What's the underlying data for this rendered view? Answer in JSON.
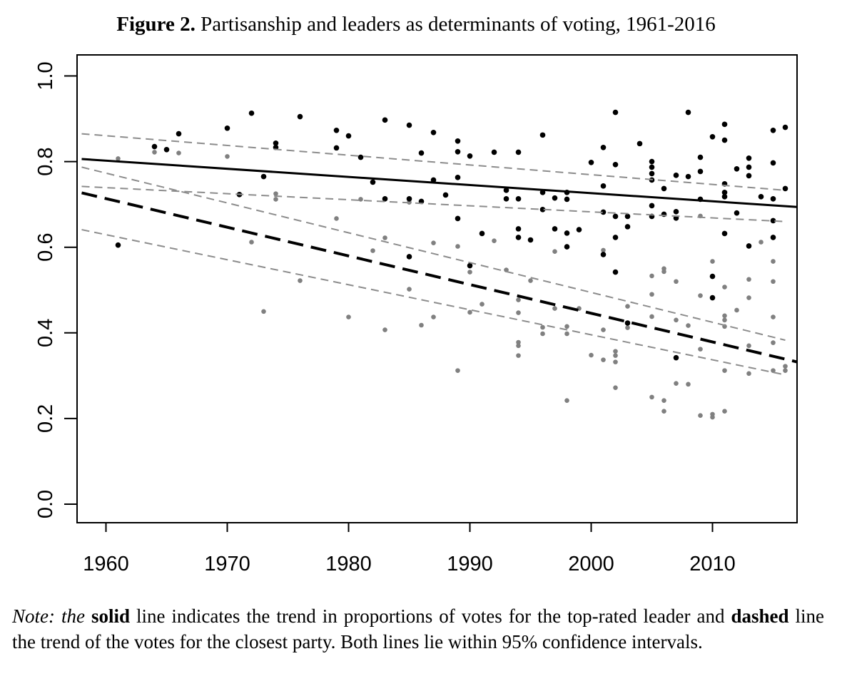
{
  "figure": {
    "label": "Figure 2.",
    "caption": " Partisanship and leaders as determinants of voting, 1961-2016"
  },
  "note": {
    "lead": "Note: the",
    "solid_word": "solid",
    "part1": " line indicates the trend in proportions of votes for the top-rated leader and ",
    "dashed_word": "dashed",
    "part2": " line the trend of the votes for the closest party. Both lines lie within 95% confidence intervals."
  },
  "chart_data": {
    "type": "scatter",
    "title": "Partisanship and leaders as determinants of voting, 1961-2016",
    "xlabel": "",
    "ylabel": "",
    "xlim": [
      1958,
      2017
    ],
    "ylim": [
      0.0,
      1.0
    ],
    "xticks": [
      1960,
      1970,
      1980,
      1990,
      2000,
      2010
    ],
    "yticks": [
      0.0,
      0.2,
      0.4,
      0.6,
      0.8,
      1.0
    ],
    "ytick_labels": [
      "0.0",
      "0.2",
      "0.4",
      "0.6",
      "0.8",
      "1.0"
    ],
    "grid": false,
    "colors": {
      "leader": "#000000",
      "party": "#808080",
      "ci": "#8c8c8c"
    },
    "series": [
      {
        "key": "leader",
        "color": "#000000",
        "points": [
          [
            1961,
            0.605
          ],
          [
            1964,
            0.835
          ],
          [
            1965,
            0.828
          ],
          [
            1966,
            0.865
          ],
          [
            1970,
            0.878
          ],
          [
            1971,
            0.723
          ],
          [
            1972,
            0.913
          ],
          [
            1973,
            0.765
          ],
          [
            1974,
            0.843
          ],
          [
            1974,
            0.833
          ],
          [
            1976,
            0.905
          ],
          [
            1979,
            0.873
          ],
          [
            1979,
            0.832
          ],
          [
            1980,
            0.86
          ],
          [
            1981,
            0.81
          ],
          [
            1982,
            0.752
          ],
          [
            1983,
            0.897
          ],
          [
            1983,
            0.713
          ],
          [
            1985,
            0.885
          ],
          [
            1985,
            0.578
          ],
          [
            1985,
            0.713
          ],
          [
            1986,
            0.82
          ],
          [
            1986,
            0.707
          ],
          [
            1987,
            0.868
          ],
          [
            1987,
            0.757
          ],
          [
            1988,
            0.722
          ],
          [
            1989,
            0.848
          ],
          [
            1989,
            0.823
          ],
          [
            1989,
            0.763
          ],
          [
            1989,
            0.667
          ],
          [
            1990,
            0.813
          ],
          [
            1990,
            0.557
          ],
          [
            1991,
            0.632
          ],
          [
            1992,
            0.822
          ],
          [
            1993,
            0.733
          ],
          [
            1993,
            0.713
          ],
          [
            1994,
            0.822
          ],
          [
            1994,
            0.713
          ],
          [
            1994,
            0.643
          ],
          [
            1994,
            0.623
          ],
          [
            1995,
            0.617
          ],
          [
            1996,
            0.862
          ],
          [
            1996,
            0.728
          ],
          [
            1996,
            0.688
          ],
          [
            1997,
            0.715
          ],
          [
            1997,
            0.643
          ],
          [
            1998,
            0.728
          ],
          [
            1998,
            0.712
          ],
          [
            1998,
            0.633
          ],
          [
            1998,
            0.601
          ],
          [
            1999,
            0.641
          ],
          [
            2000,
            0.798
          ],
          [
            2001,
            0.833
          ],
          [
            2001,
            0.743
          ],
          [
            2001,
            0.682
          ],
          [
            2001,
            0.583
          ],
          [
            2002,
            0.915
          ],
          [
            2002,
            0.793
          ],
          [
            2002,
            0.672
          ],
          [
            2002,
            0.623
          ],
          [
            2002,
            0.542
          ],
          [
            2003,
            0.672
          ],
          [
            2003,
            0.648
          ],
          [
            2003,
            0.423
          ],
          [
            2004,
            0.842
          ],
          [
            2005,
            0.8
          ],
          [
            2005,
            0.787
          ],
          [
            2005,
            0.772
          ],
          [
            2005,
            0.757
          ],
          [
            2005,
            0.697
          ],
          [
            2005,
            0.672
          ],
          [
            2006,
            0.737
          ],
          [
            2006,
            0.677
          ],
          [
            2007,
            0.768
          ],
          [
            2007,
            0.683
          ],
          [
            2007,
            0.668
          ],
          [
            2007,
            0.342
          ],
          [
            2008,
            0.915
          ],
          [
            2008,
            0.765
          ],
          [
            2009,
            0.81
          ],
          [
            2009,
            0.777
          ],
          [
            2009,
            0.712
          ],
          [
            2010,
            0.858
          ],
          [
            2010,
            0.532
          ],
          [
            2010,
            0.482
          ],
          [
            2011,
            0.887
          ],
          [
            2011,
            0.85
          ],
          [
            2011,
            0.748
          ],
          [
            2011,
            0.728
          ],
          [
            2011,
            0.718
          ],
          [
            2011,
            0.632
          ],
          [
            2012,
            0.783
          ],
          [
            2012,
            0.68
          ],
          [
            2013,
            0.808
          ],
          [
            2013,
            0.787
          ],
          [
            2013,
            0.767
          ],
          [
            2013,
            0.603
          ],
          [
            2014,
            0.718
          ],
          [
            2015,
            0.873
          ],
          [
            2015,
            0.797
          ],
          [
            2015,
            0.713
          ],
          [
            2015,
            0.662
          ],
          [
            2015,
            0.623
          ],
          [
            2016,
            0.88
          ],
          [
            2016,
            0.737
          ]
        ]
      },
      {
        "key": "party",
        "color": "#808080",
        "points": [
          [
            1961,
            0.807
          ],
          [
            1964,
            0.822
          ],
          [
            1966,
            0.82
          ],
          [
            1970,
            0.812
          ],
          [
            1972,
            0.612
          ],
          [
            1973,
            0.45
          ],
          [
            1974,
            0.725
          ],
          [
            1974,
            0.712
          ],
          [
            1976,
            0.522
          ],
          [
            1979,
            0.667
          ],
          [
            1980,
            0.437
          ],
          [
            1981,
            0.712
          ],
          [
            1982,
            0.592
          ],
          [
            1983,
            0.622
          ],
          [
            1983,
            0.407
          ],
          [
            1985,
            0.705
          ],
          [
            1985,
            0.502
          ],
          [
            1986,
            0.418
          ],
          [
            1987,
            0.61
          ],
          [
            1987,
            0.437
          ],
          [
            1989,
            0.602
          ],
          [
            1989,
            0.312
          ],
          [
            1990,
            0.542
          ],
          [
            1990,
            0.448
          ],
          [
            1991,
            0.467
          ],
          [
            1992,
            0.615
          ],
          [
            1993,
            0.547
          ],
          [
            1994,
            0.477
          ],
          [
            1994,
            0.447
          ],
          [
            1994,
            0.378
          ],
          [
            1994,
            0.37
          ],
          [
            1994,
            0.347
          ],
          [
            1995,
            0.522
          ],
          [
            1996,
            0.413
          ],
          [
            1996,
            0.398
          ],
          [
            1997,
            0.59
          ],
          [
            1997,
            0.457
          ],
          [
            1998,
            0.415
          ],
          [
            1998,
            0.398
          ],
          [
            1998,
            0.242
          ],
          [
            1999,
            0.457
          ],
          [
            2000,
            0.348
          ],
          [
            2001,
            0.593
          ],
          [
            2001,
            0.407
          ],
          [
            2001,
            0.337
          ],
          [
            2002,
            0.357
          ],
          [
            2002,
            0.347
          ],
          [
            2002,
            0.332
          ],
          [
            2002,
            0.272
          ],
          [
            2003,
            0.462
          ],
          [
            2003,
            0.412
          ],
          [
            2005,
            0.533
          ],
          [
            2005,
            0.49
          ],
          [
            2005,
            0.438
          ],
          [
            2005,
            0.25
          ],
          [
            2006,
            0.55
          ],
          [
            2006,
            0.543
          ],
          [
            2006,
            0.242
          ],
          [
            2006,
            0.217
          ],
          [
            2007,
            0.52
          ],
          [
            2007,
            0.43
          ],
          [
            2007,
            0.282
          ],
          [
            2008,
            0.417
          ],
          [
            2008,
            0.28
          ],
          [
            2009,
            0.673
          ],
          [
            2009,
            0.487
          ],
          [
            2009,
            0.362
          ],
          [
            2009,
            0.207
          ],
          [
            2010,
            0.567
          ],
          [
            2010,
            0.21
          ],
          [
            2010,
            0.203
          ],
          [
            2011,
            0.507
          ],
          [
            2011,
            0.44
          ],
          [
            2011,
            0.43
          ],
          [
            2011,
            0.415
          ],
          [
            2011,
            0.312
          ],
          [
            2011,
            0.217
          ],
          [
            2012,
            0.453
          ],
          [
            2013,
            0.525
          ],
          [
            2013,
            0.482
          ],
          [
            2013,
            0.37
          ],
          [
            2013,
            0.305
          ],
          [
            2014,
            0.612
          ],
          [
            2015,
            0.567
          ],
          [
            2015,
            0.52
          ],
          [
            2015,
            0.437
          ],
          [
            2015,
            0.377
          ],
          [
            2015,
            0.312
          ],
          [
            2016,
            0.322
          ],
          [
            2016,
            0.312
          ]
        ]
      }
    ],
    "trend_lines": [
      {
        "key": "leader-trend",
        "style": "solid",
        "color": "#000000",
        "width": 3,
        "x": [
          1958,
          2017
        ],
        "y": [
          0.806,
          0.694
        ]
      },
      {
        "key": "leader-ci-upper",
        "style": "dashed",
        "color": "#8c8c8c",
        "width": 2,
        "x": [
          1958,
          2016
        ],
        "y": [
          0.865,
          0.733
        ]
      },
      {
        "key": "leader-ci-lower",
        "style": "dashed",
        "color": "#8c8c8c",
        "width": 2,
        "x": [
          1958,
          2016
        ],
        "y": [
          0.742,
          0.66
        ]
      },
      {
        "key": "party-trend",
        "style": "dashed",
        "color": "#000000",
        "width": 4,
        "x": [
          1958,
          2017
        ],
        "y": [
          0.727,
          0.332
        ]
      },
      {
        "key": "party-ci-upper",
        "style": "dashed",
        "color": "#8c8c8c",
        "width": 2,
        "x": [
          1958,
          2016
        ],
        "y": [
          0.787,
          0.383
        ]
      },
      {
        "key": "party-ci-lower",
        "style": "dashed",
        "color": "#8c8c8c",
        "width": 2,
        "x": [
          1958,
          2016
        ],
        "y": [
          0.641,
          0.302
        ]
      }
    ]
  }
}
